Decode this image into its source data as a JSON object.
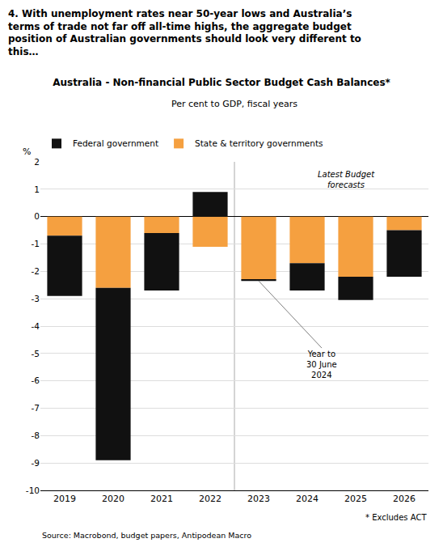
{
  "chart_data": {
    "type": "bar",
    "header": "4. With unemployment rates near 50-year lows and Australia’s\nterms of trade not far off all-time highs, the aggregate budget\nposition of Australian governments should look very different to\nthis…",
    "title": "Australia - Non-financial Public Sector Budget Cash Balances*",
    "subtitle": "Per cent to GDP, fiscal years",
    "ylabel": "%",
    "source": "Source: Macrobond, budget papers, Antipodean Macro",
    "footnote": "* Excludes ACT",
    "annotations": [
      "Latest Budget\nforecasts",
      "Year to\n30 June\n2024"
    ],
    "categories": [
      "2019",
      "2020",
      "2021",
      "2022",
      "2023",
      "2024",
      "2025",
      "2026"
    ],
    "series": [
      {
        "name": "Federal government",
        "color": "#111111",
        "values": [
          -2.2,
          -6.3,
          -2.1,
          0.9,
          -0.05,
          -1.0,
          -0.85,
          -1.7
        ]
      },
      {
        "name": "State & territory governments",
        "color": "#F5A040",
        "values": [
          -0.7,
          -2.6,
          -0.6,
          -1.1,
          -2.3,
          -1.7,
          -2.2,
          -0.5
        ]
      }
    ],
    "stacked": true,
    "ylim": [
      -10,
      2
    ],
    "yticks": [
      2,
      1,
      0,
      -1,
      -2,
      -3,
      -4,
      -5,
      -6,
      -7,
      -8,
      -9,
      -10
    ],
    "grid": true,
    "legend": "top"
  }
}
